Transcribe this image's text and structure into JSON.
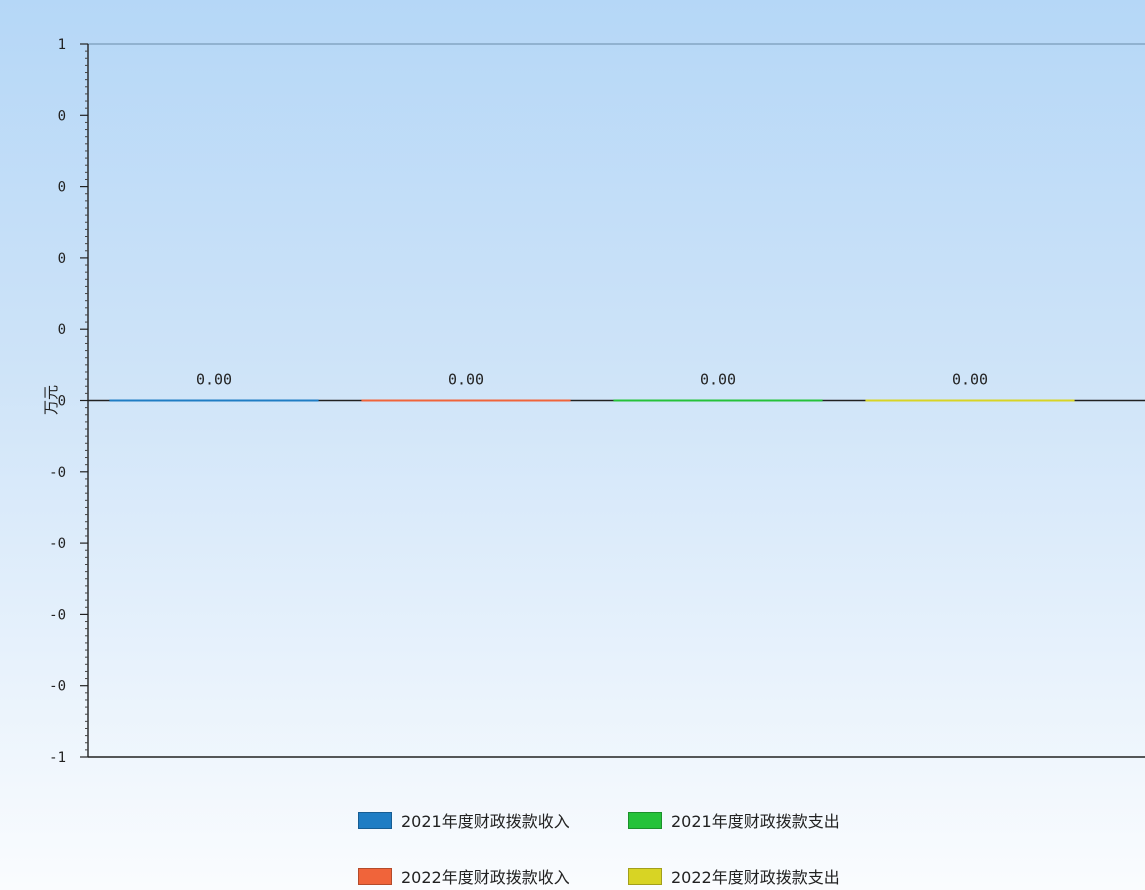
{
  "chart_data": {
    "type": "bar",
    "ylabel": "万元",
    "ylim": [
      -1,
      1
    ],
    "yticks": [
      {
        "value": 1,
        "label": "1"
      },
      {
        "value": 0.8,
        "label": "0"
      },
      {
        "value": 0.6,
        "label": "0"
      },
      {
        "value": 0.4,
        "label": "0"
      },
      {
        "value": 0.2,
        "label": "0"
      },
      {
        "value": 0,
        "label": "0"
      },
      {
        "value": -0.2,
        "label": "-0"
      },
      {
        "value": -0.4,
        "label": "-0"
      },
      {
        "value": -0.6,
        "label": "-0"
      },
      {
        "value": -0.8,
        "label": "-0"
      },
      {
        "value": -1,
        "label": "-1"
      }
    ],
    "grid": false,
    "legend_position": "bottom",
    "series": [
      {
        "name": "2021年度财政拨款收入",
        "value": 0.0,
        "label": "0.00",
        "color": "#1f7dc4"
      },
      {
        "name": "2022年度财政拨款收入",
        "value": 0.0,
        "label": "0.00",
        "color": "#f0643a"
      },
      {
        "name": "2021年度财政拨款支出",
        "value": 0.0,
        "label": "0.00",
        "color": "#25c23a"
      },
      {
        "name": "2022年度财政拨款支出",
        "value": 0.0,
        "label": "0.00",
        "color": "#d8d424"
      }
    ]
  }
}
